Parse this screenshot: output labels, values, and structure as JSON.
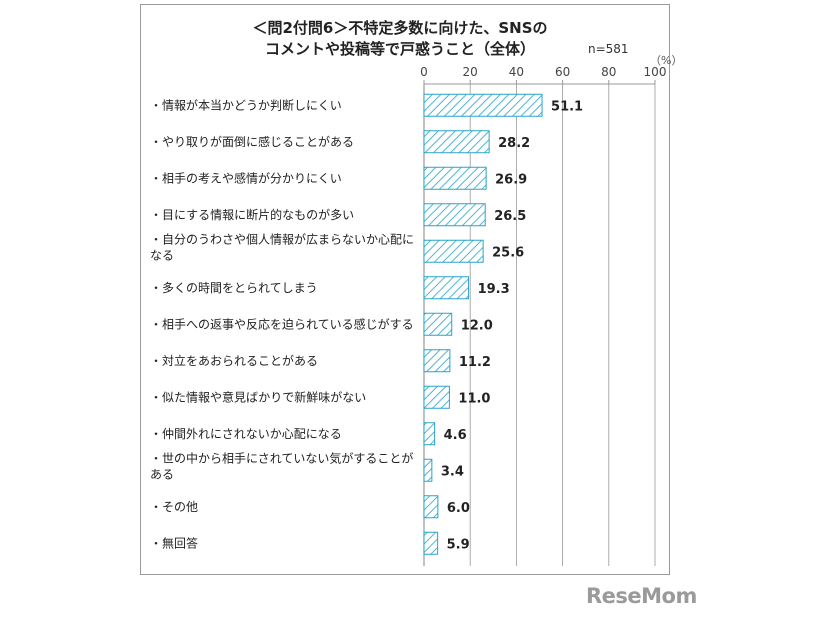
{
  "title_lines": [
    "＜問2付問6＞不特定多数に向けた、SNSの",
    "コメントや投稿等で戸惑うこと（全体）"
  ],
  "sample_label": "n=581",
  "unit_label": "（%）",
  "logo": "ReseMom",
  "colors": {
    "bar_stroke": "#2aa3c8",
    "bar_hatch": "#4db5d6",
    "axis": "#999999"
  },
  "chart_data": {
    "type": "bar",
    "orientation": "horizontal",
    "title": "＜問2付問6＞不特定多数に向けた、SNSのコメントや投稿等で戸惑うこと（全体）",
    "xlim": [
      0,
      100
    ],
    "ticks": [
      0,
      20,
      40,
      60,
      80,
      100
    ],
    "grid": true,
    "categories": [
      [
        "・情報が本当かどうか判断しにくい"
      ],
      [
        "・やり取りが面倒に感じることがある"
      ],
      [
        "・相手の考えや感情が分かりにくい"
      ],
      [
        "・目にする情報に断片的なものが多い"
      ],
      [
        "・自分のうわさや個人情報が広まらないか心配に",
        "なる"
      ],
      [
        "・多くの時間をとられてしまう"
      ],
      [
        "・相手への返事や反応を迫られている感じがする"
      ],
      [
        "・対立をあおられることがある"
      ],
      [
        "・似た情報や意見ばかりで新鮮味がない"
      ],
      [
        "・仲間外れにされないか心配になる"
      ],
      [
        "・世の中から相手にされていない気がすることが",
        "ある"
      ],
      [
        "・その他"
      ],
      [
        "・無回答"
      ]
    ],
    "values": [
      51.1,
      28.2,
      26.9,
      26.5,
      25.6,
      19.3,
      12.0,
      11.2,
      11.0,
      4.6,
      3.4,
      6.0,
      5.9
    ],
    "value_labels": [
      "51.1",
      "28.2",
      "26.9",
      "26.5",
      "25.6",
      "19.3",
      "12.0",
      "11.2",
      "11.0",
      "4.6",
      "3.4",
      "6.0",
      "5.9"
    ]
  }
}
